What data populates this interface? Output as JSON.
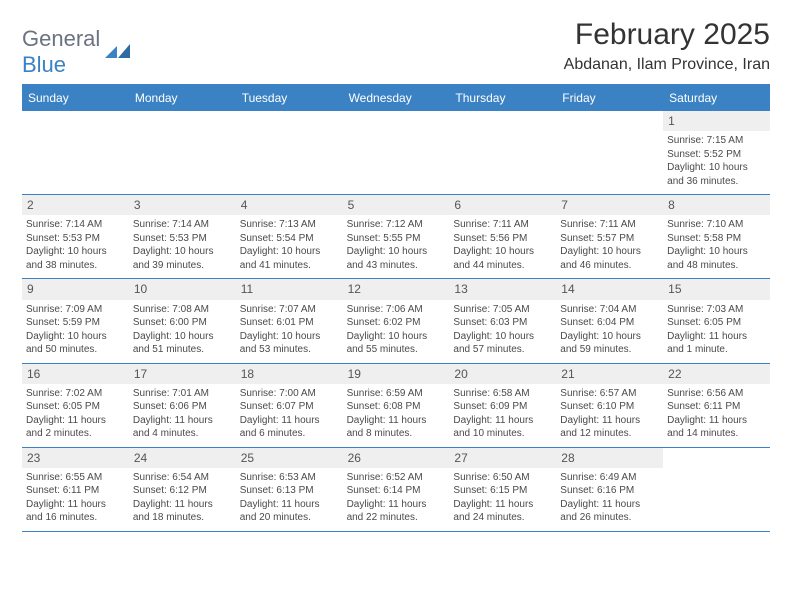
{
  "logo": {
    "text_a": "General",
    "text_b": "Blue"
  },
  "title": "February 2025",
  "location": "Abdanan, Ilam Province, Iran",
  "colors": {
    "brand": "#3b82c4",
    "header_text": "#333333",
    "cell_text": "#4a4a4a",
    "daynum_bg": "#efefef",
    "daynum_text": "#555555",
    "logo_gray": "#6b7280",
    "background": "#ffffff"
  },
  "weekdays": [
    "Sunday",
    "Monday",
    "Tuesday",
    "Wednesday",
    "Thursday",
    "Friday",
    "Saturday"
  ],
  "layout": {
    "cols": 7,
    "rows": 5,
    "first_day_col": 6
  },
  "days": [
    {
      "n": "1",
      "sunrise": "Sunrise: 7:15 AM",
      "sunset": "Sunset: 5:52 PM",
      "daylight": "Daylight: 10 hours and 36 minutes."
    },
    {
      "n": "2",
      "sunrise": "Sunrise: 7:14 AM",
      "sunset": "Sunset: 5:53 PM",
      "daylight": "Daylight: 10 hours and 38 minutes."
    },
    {
      "n": "3",
      "sunrise": "Sunrise: 7:14 AM",
      "sunset": "Sunset: 5:53 PM",
      "daylight": "Daylight: 10 hours and 39 minutes."
    },
    {
      "n": "4",
      "sunrise": "Sunrise: 7:13 AM",
      "sunset": "Sunset: 5:54 PM",
      "daylight": "Daylight: 10 hours and 41 minutes."
    },
    {
      "n": "5",
      "sunrise": "Sunrise: 7:12 AM",
      "sunset": "Sunset: 5:55 PM",
      "daylight": "Daylight: 10 hours and 43 minutes."
    },
    {
      "n": "6",
      "sunrise": "Sunrise: 7:11 AM",
      "sunset": "Sunset: 5:56 PM",
      "daylight": "Daylight: 10 hours and 44 minutes."
    },
    {
      "n": "7",
      "sunrise": "Sunrise: 7:11 AM",
      "sunset": "Sunset: 5:57 PM",
      "daylight": "Daylight: 10 hours and 46 minutes."
    },
    {
      "n": "8",
      "sunrise": "Sunrise: 7:10 AM",
      "sunset": "Sunset: 5:58 PM",
      "daylight": "Daylight: 10 hours and 48 minutes."
    },
    {
      "n": "9",
      "sunrise": "Sunrise: 7:09 AM",
      "sunset": "Sunset: 5:59 PM",
      "daylight": "Daylight: 10 hours and 50 minutes."
    },
    {
      "n": "10",
      "sunrise": "Sunrise: 7:08 AM",
      "sunset": "Sunset: 6:00 PM",
      "daylight": "Daylight: 10 hours and 51 minutes."
    },
    {
      "n": "11",
      "sunrise": "Sunrise: 7:07 AM",
      "sunset": "Sunset: 6:01 PM",
      "daylight": "Daylight: 10 hours and 53 minutes."
    },
    {
      "n": "12",
      "sunrise": "Sunrise: 7:06 AM",
      "sunset": "Sunset: 6:02 PM",
      "daylight": "Daylight: 10 hours and 55 minutes."
    },
    {
      "n": "13",
      "sunrise": "Sunrise: 7:05 AM",
      "sunset": "Sunset: 6:03 PM",
      "daylight": "Daylight: 10 hours and 57 minutes."
    },
    {
      "n": "14",
      "sunrise": "Sunrise: 7:04 AM",
      "sunset": "Sunset: 6:04 PM",
      "daylight": "Daylight: 10 hours and 59 minutes."
    },
    {
      "n": "15",
      "sunrise": "Sunrise: 7:03 AM",
      "sunset": "Sunset: 6:05 PM",
      "daylight": "Daylight: 11 hours and 1 minute."
    },
    {
      "n": "16",
      "sunrise": "Sunrise: 7:02 AM",
      "sunset": "Sunset: 6:05 PM",
      "daylight": "Daylight: 11 hours and 2 minutes."
    },
    {
      "n": "17",
      "sunrise": "Sunrise: 7:01 AM",
      "sunset": "Sunset: 6:06 PM",
      "daylight": "Daylight: 11 hours and 4 minutes."
    },
    {
      "n": "18",
      "sunrise": "Sunrise: 7:00 AM",
      "sunset": "Sunset: 6:07 PM",
      "daylight": "Daylight: 11 hours and 6 minutes."
    },
    {
      "n": "19",
      "sunrise": "Sunrise: 6:59 AM",
      "sunset": "Sunset: 6:08 PM",
      "daylight": "Daylight: 11 hours and 8 minutes."
    },
    {
      "n": "20",
      "sunrise": "Sunrise: 6:58 AM",
      "sunset": "Sunset: 6:09 PM",
      "daylight": "Daylight: 11 hours and 10 minutes."
    },
    {
      "n": "21",
      "sunrise": "Sunrise: 6:57 AM",
      "sunset": "Sunset: 6:10 PM",
      "daylight": "Daylight: 11 hours and 12 minutes."
    },
    {
      "n": "22",
      "sunrise": "Sunrise: 6:56 AM",
      "sunset": "Sunset: 6:11 PM",
      "daylight": "Daylight: 11 hours and 14 minutes."
    },
    {
      "n": "23",
      "sunrise": "Sunrise: 6:55 AM",
      "sunset": "Sunset: 6:11 PM",
      "daylight": "Daylight: 11 hours and 16 minutes."
    },
    {
      "n": "24",
      "sunrise": "Sunrise: 6:54 AM",
      "sunset": "Sunset: 6:12 PM",
      "daylight": "Daylight: 11 hours and 18 minutes."
    },
    {
      "n": "25",
      "sunrise": "Sunrise: 6:53 AM",
      "sunset": "Sunset: 6:13 PM",
      "daylight": "Daylight: 11 hours and 20 minutes."
    },
    {
      "n": "26",
      "sunrise": "Sunrise: 6:52 AM",
      "sunset": "Sunset: 6:14 PM",
      "daylight": "Daylight: 11 hours and 22 minutes."
    },
    {
      "n": "27",
      "sunrise": "Sunrise: 6:50 AM",
      "sunset": "Sunset: 6:15 PM",
      "daylight": "Daylight: 11 hours and 24 minutes."
    },
    {
      "n": "28",
      "sunrise": "Sunrise: 6:49 AM",
      "sunset": "Sunset: 6:16 PM",
      "daylight": "Daylight: 11 hours and 26 minutes."
    }
  ]
}
